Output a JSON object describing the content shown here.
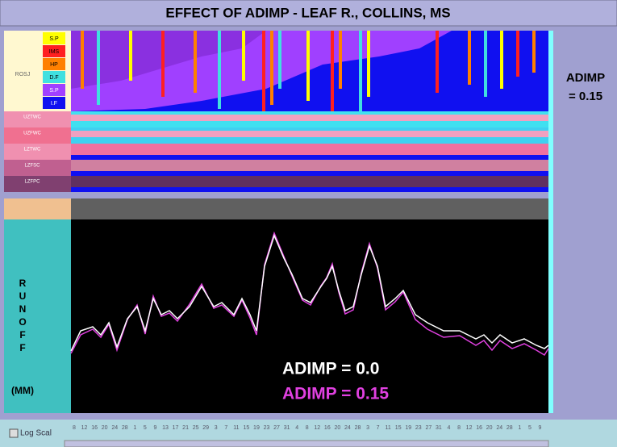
{
  "header": {
    "title": "EFFECT OF ADIMP - LEAF R., COLLINS, MS"
  },
  "side_label": {
    "line1": "ADIMP",
    "line2": "= 0.15"
  },
  "top_panel": {
    "group_label": "ROSJ",
    "legend": [
      {
        "label": "S.P",
        "color": "#ffff00"
      },
      {
        "label": "IMS",
        "color": "#ff2020"
      },
      {
        "label": "HP",
        "color": "#ff8000"
      },
      {
        "label": "D.F",
        "color": "#40e0e0"
      },
      {
        "label": "S.P",
        "color": "#a040ff"
      },
      {
        "label": "I.F",
        "color": "#1010f0"
      }
    ],
    "rows": [
      "UZTWC",
      "UZFWC",
      "LZTWC",
      "LZFSC",
      "LZFPC"
    ]
  },
  "bottom_panel": {
    "axis_letters": [
      "R",
      "U",
      "N",
      "O",
      "F",
      "F"
    ],
    "unit": "(MM)",
    "chart_data": {
      "type": "line",
      "xlim": [
        0,
        592
      ],
      "ylim": [
        0,
        240
      ],
      "x": [
        0,
        12,
        27,
        37,
        47,
        57,
        70,
        82,
        92,
        102,
        112,
        122,
        132,
        147,
        162,
        177,
        187,
        202,
        212,
        222,
        230,
        240,
        252,
        264,
        274,
        287,
        297,
        310,
        317,
        324,
        332,
        340,
        350,
        360,
        370,
        380,
        390,
        402,
        412,
        427,
        442,
        462,
        482,
        502,
        512,
        522,
        532,
        547,
        562,
        577,
        587,
        592
      ],
      "series": [
        {
          "name": "ADIMP = 0.0",
          "color": "#ffffff",
          "values": [
            77,
            102,
            107,
            97,
            112,
            82,
            117,
            132,
            102,
            142,
            122,
            127,
            117,
            132,
            157,
            132,
            137,
            122,
            142,
            122,
            102,
            182,
            220,
            192,
            172,
            142,
            137,
            157,
            167,
            182,
            152,
            127,
            132,
            172,
            207,
            182,
            132,
            142,
            152,
            122,
            112,
            102,
            102,
            92,
            97,
            87,
            97,
            87,
            92,
            84,
            80,
            84
          ]
        },
        {
          "name": "ADIMP = 0.15",
          "color": "#e040e0",
          "values": [
            74,
            97,
            104,
            94,
            110,
            78,
            116,
            134,
            98,
            145,
            120,
            124,
            114,
            135,
            160,
            130,
            134,
            120,
            140,
            118,
            97,
            184,
            223,
            194,
            170,
            140,
            134,
            158,
            168,
            185,
            150,
            123,
            128,
            174,
            210,
            180,
            128,
            138,
            150,
            116,
            104,
            94,
            96,
            84,
            90,
            78,
            90,
            80,
            86,
            78,
            72,
            80
          ]
        }
      ]
    }
  },
  "footer": {
    "checkbox": "Log Scal",
    "dates": [
      "8",
      "12",
      "16",
      "20",
      "24",
      "28",
      "1",
      "5",
      "9",
      "13",
      "17",
      "21",
      "25",
      "29",
      "3",
      "7",
      "11",
      "15",
      "19",
      "23",
      "27",
      "31",
      "4",
      "8",
      "12",
      "16",
      "20",
      "24",
      "28",
      "3",
      "7",
      "11",
      "15",
      "19",
      "23",
      "27",
      "31",
      "4",
      "8",
      "12",
      "16",
      "20",
      "24",
      "28",
      "1",
      "5",
      "9"
    ]
  }
}
